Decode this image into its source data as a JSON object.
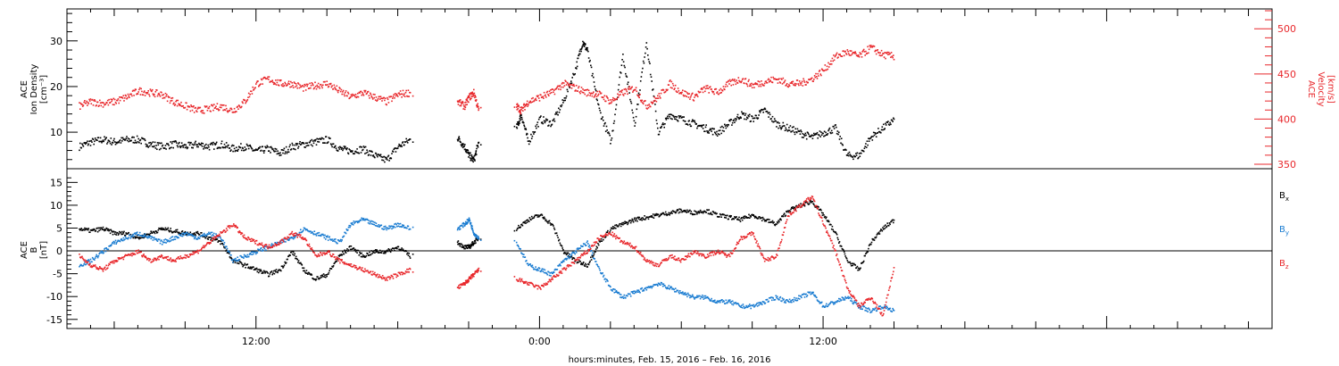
{
  "chart_data": [
    {
      "type": "scatter",
      "panel": "top",
      "ylabel_left": [
        "ACE",
        "Ion Density",
        "[cm⁻³]"
      ],
      "ylabel_right": [
        "ACE",
        "Velocity",
        "[km/s]"
      ],
      "xlim": [
        -20,
        31
      ],
      "ylim_left": [
        2,
        37
      ],
      "ylim_right": [
        345,
        522
      ],
      "yticks_left": [
        10,
        20,
        30
      ],
      "yticks_right": [
        350,
        400,
        450,
        500
      ],
      "series": [
        {
          "axis": "left",
          "color": "#000000",
          "x": [
            -19.5,
            -19,
            -18.5,
            -18,
            -17.5,
            -17,
            -16.5,
            -16,
            -15.5,
            -15,
            -14.5,
            -14,
            -13.5,
            -13,
            -12.5,
            -12,
            -11.5,
            -11,
            -10.5,
            -10,
            -9.5,
            -9,
            -8.5,
            -8,
            -7.5,
            -7,
            -6.5,
            -6,
            -5.5,
            -3.5,
            -3.2,
            -3,
            -2.8,
            -2.6,
            -1,
            -0.8,
            -0.5,
            0,
            0.5,
            1,
            1.5,
            1.8,
            2,
            2.5,
            3,
            3.5,
            4,
            4.5,
            5,
            5.5,
            6,
            6.5,
            7,
            7.5,
            8,
            8.5,
            9,
            9.5,
            10,
            10.5,
            11,
            11.5,
            12,
            12.5,
            13,
            13.5,
            14,
            14.5,
            15
          ],
          "y": [
            7,
            8,
            8.5,
            8,
            8.5,
            8.5,
            7.5,
            7,
            7.5,
            7,
            7.5,
            7,
            7.5,
            6.5,
            7,
            6,
            6.5,
            5.5,
            7,
            7.5,
            8,
            8.5,
            6.5,
            6,
            6.5,
            5,
            4,
            7,
            8.5,
            9,
            7,
            5,
            4,
            8,
            11,
            14,
            8,
            13,
            12,
            17,
            24,
            30,
            28,
            15,
            8,
            27,
            12,
            30,
            10,
            14,
            13,
            12,
            11,
            10,
            12,
            14,
            13,
            15,
            12,
            11,
            10,
            9,
            10,
            11,
            5,
            5,
            9,
            11,
            13
          ],
          "points": 69
        },
        {
          "axis": "right",
          "color": "#e8272b",
          "x": [
            -19.5,
            -19,
            -18.5,
            -18,
            -17.5,
            -17,
            -16.5,
            -16,
            -15.5,
            -15,
            -14.5,
            -14,
            -13.5,
            -13,
            -12.5,
            -12,
            -11.5,
            -11,
            -10.5,
            -10,
            -9.5,
            -9,
            -8.5,
            -8,
            -7.5,
            -7,
            -6.5,
            -6,
            -5.5,
            -3.5,
            -3.2,
            -3,
            -2.8,
            -2.6,
            -1,
            -0.8,
            -0.5,
            0,
            0.5,
            1,
            1.5,
            2,
            2.5,
            3,
            3.5,
            4,
            4.5,
            5,
            5.5,
            6,
            6.5,
            7,
            7.5,
            8,
            8.5,
            9,
            9.5,
            10,
            10.5,
            11,
            11.5,
            12,
            12.5,
            13,
            13.5,
            14,
            14.5,
            15
          ],
          "y": [
            415,
            420,
            418,
            420,
            425,
            432,
            430,
            428,
            420,
            415,
            410,
            412,
            415,
            410,
            420,
            440,
            445,
            440,
            440,
            435,
            438,
            440,
            432,
            425,
            430,
            425,
            420,
            428,
            430,
            420,
            415,
            425,
            430,
            410,
            415,
            410,
            420,
            425,
            430,
            440,
            435,
            430,
            428,
            420,
            430,
            435,
            415,
            425,
            440,
            430,
            425,
            435,
            430,
            440,
            445,
            438,
            442,
            445,
            440,
            440,
            445,
            455,
            470,
            475,
            470,
            480,
            472,
            470
          ],
          "points": 68
        }
      ]
    },
    {
      "type": "scatter",
      "panel": "bottom",
      "ylabel": [
        "ACE",
        "B",
        "[nT]"
      ],
      "xlim": [
        -20,
        31
      ],
      "ylim": [
        -17,
        18
      ],
      "yticks": [
        -15,
        -10,
        -5,
        0,
        5,
        10,
        15
      ],
      "zero_line": true,
      "legend": [
        {
          "name": "B",
          "sub": "x",
          "color": "#000000"
        },
        {
          "name": "B",
          "sub": "y",
          "color": "#1a7cd1"
        },
        {
          "name": "B",
          "sub": "z",
          "color": "#e8272b"
        }
      ],
      "series": [
        {
          "name": "Bx",
          "color": "#000000",
          "x": [
            -19.5,
            -19,
            -18.5,
            -18,
            -17.5,
            -17,
            -16.5,
            -16,
            -15.5,
            -15,
            -14.5,
            -14,
            -13.5,
            -13,
            -12.5,
            -12,
            -11.5,
            -11,
            -10.5,
            -10,
            -9.5,
            -9,
            -8.5,
            -8,
            -7.5,
            -7,
            -6.5,
            -6,
            -5.5,
            -3.5,
            -3.2,
            -3,
            -2.8,
            -2.6,
            -1,
            -0.5,
            0,
            0.5,
            1,
            1.5,
            2,
            2.5,
            3,
            3.5,
            4,
            4.5,
            5,
            5.5,
            6,
            6.5,
            7,
            7.5,
            8,
            8.5,
            9,
            9.5,
            10,
            10.5,
            11,
            11.5,
            12,
            12.5,
            13,
            13.5,
            14,
            14.5,
            15
          ],
          "y": [
            5,
            4.5,
            5,
            4,
            4,
            3,
            4,
            5,
            4.5,
            4,
            4,
            3,
            2,
            -2,
            -3,
            -4,
            -5,
            -4,
            0,
            -4,
            -6,
            -5,
            -1,
            1,
            -1,
            0,
            0,
            1,
            -1,
            2,
            1,
            1,
            2,
            3,
            5,
            7,
            8,
            6,
            0,
            -2,
            -3,
            2,
            5,
            6,
            7,
            7.5,
            8,
            8.5,
            9,
            8.5,
            9,
            8,
            7.5,
            7,
            8,
            7,
            6,
            9,
            10,
            11,
            8,
            4,
            -2,
            -4,
            2,
            5,
            7
          ],
          "points": 67
        },
        {
          "name": "By",
          "color": "#1a7cd1",
          "x": [
            -19.5,
            -19,
            -18.5,
            -18,
            -17.5,
            -17,
            -16.5,
            -16,
            -15.5,
            -15,
            -14.5,
            -14,
            -13.5,
            -13,
            -12.5,
            -12,
            -11.5,
            -11,
            -10.5,
            -10,
            -9.5,
            -9,
            -8.5,
            -8,
            -7.5,
            -7,
            -6.5,
            -6,
            -5.5,
            -3.5,
            -3.2,
            -3,
            -2.8,
            -2.6,
            -1,
            -0.5,
            0,
            0.5,
            1,
            1.5,
            2,
            2.5,
            3,
            3.5,
            4,
            4.5,
            5,
            5.5,
            6,
            6.5,
            7,
            7.5,
            8,
            8.5,
            9,
            9.5,
            10,
            10.5,
            11,
            11.5,
            12,
            12.5,
            13,
            13.5,
            14,
            14.5,
            15
          ],
          "y": [
            -3,
            -2,
            0,
            2,
            3,
            4,
            3,
            2,
            3,
            4,
            3,
            4,
            3,
            -2,
            -1,
            0,
            1,
            2,
            3,
            5,
            4,
            3,
            2,
            6,
            7,
            6,
            5,
            6,
            5,
            5,
            6,
            7,
            4,
            3,
            2,
            -3,
            -4,
            -5,
            -2,
            0,
            2,
            -4,
            -8,
            -10,
            -9,
            -8,
            -7,
            -8,
            -9,
            -10,
            -10,
            -11,
            -11,
            -12,
            -12,
            -11,
            -10,
            -11,
            -10,
            -9,
            -12,
            -11,
            -10,
            -12,
            -13,
            -12,
            -13
          ],
          "points": 67
        },
        {
          "name": "Bz",
          "color": "#e8272b",
          "x": [
            -19.5,
            -19,
            -18.5,
            -18,
            -17.5,
            -17,
            -16.5,
            -16,
            -15.5,
            -15,
            -14.5,
            -14,
            -13.5,
            -13,
            -12.5,
            -12,
            -11.5,
            -11,
            -10.5,
            -10,
            -9.5,
            -9,
            -8.5,
            -8,
            -7.5,
            -7,
            -6.5,
            -6,
            -5.5,
            -3.5,
            -3.2,
            -3,
            -2.8,
            -2.6,
            -1,
            -0.5,
            0,
            0.5,
            1,
            1.5,
            2,
            2.5,
            3,
            3.5,
            4,
            4.5,
            5,
            5.5,
            6,
            6.5,
            7,
            7.5,
            8,
            8.5,
            9,
            9.5,
            10,
            10.5,
            11,
            11.5,
            12,
            12.5,
            13,
            13.5,
            14,
            14.5,
            15
          ],
          "y": [
            -1,
            -3,
            -4,
            -2,
            -1,
            0,
            -2,
            -1,
            -2,
            -1,
            0,
            2,
            4,
            6,
            3,
            2,
            1,
            2,
            4,
            3,
            -1,
            0,
            -2,
            -3,
            -4,
            -5,
            -6,
            -5,
            -4,
            -8,
            -7,
            -6,
            -5,
            -4,
            -6,
            -7,
            -8,
            -6,
            -4,
            -2,
            0,
            3,
            4,
            2,
            1,
            -2,
            -3,
            -1,
            -2,
            0,
            -1,
            0,
            -1,
            3,
            4,
            -2,
            -1,
            8,
            10,
            12,
            6,
            0,
            -8,
            -12,
            -10,
            -14,
            -3
          ],
          "points": 67
        }
      ]
    }
  ],
  "x_axis": {
    "tick_labels": [
      "12:00",
      "0:00",
      "12:00"
    ],
    "tick_hours": [
      -12,
      0,
      12
    ],
    "xlabel": "hours:minutes, Feb. 15, 2016 – Feb. 16, 2016"
  },
  "colors": {
    "density": "#000000",
    "velocity": "#e8272b",
    "bx": "#000000",
    "by": "#1a7cd1",
    "bz": "#e8272b",
    "frame": "#000000"
  }
}
